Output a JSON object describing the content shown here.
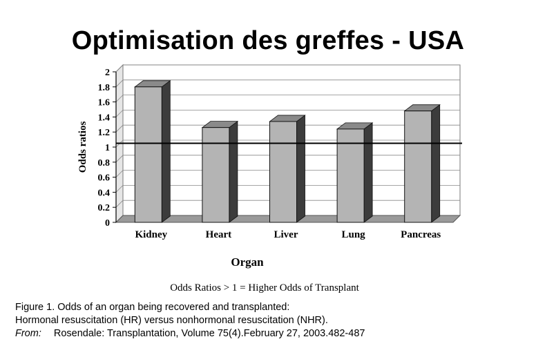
{
  "slide": {
    "title": "Optimisation des greffes - USA"
  },
  "chart_data": {
    "type": "bar",
    "categories": [
      "Kidney",
      "Heart",
      "Liver",
      "Lung",
      "Pancreas"
    ],
    "values": [
      1.8,
      1.26,
      1.34,
      1.24,
      1.48
    ],
    "xlabel": "Organ",
    "ylabel": "Odds ratios",
    "ylim": [
      0,
      2
    ],
    "yticks": [
      "0",
      "0.2",
      "0.4",
      "0.6",
      "0.8",
      "1",
      "1.2",
      "1.4",
      "1.6",
      "1.8",
      "2"
    ],
    "reference_line": 1.05,
    "note": "Odds Ratios > 1 = Higher Odds of Transplant",
    "grid": true,
    "style": "3d",
    "bar_color": "#b4b4b4"
  },
  "caption": {
    "line1": "Figure 1. Odds of an organ being recovered and transplanted:",
    "line2": "Hormonal resuscitation (HR) versus nonhormonal resuscitation (NHR).",
    "from_label": "From:",
    "source": "Rosendale: Transplantation, Volume 75(4).February 27, 2003.482-487"
  }
}
